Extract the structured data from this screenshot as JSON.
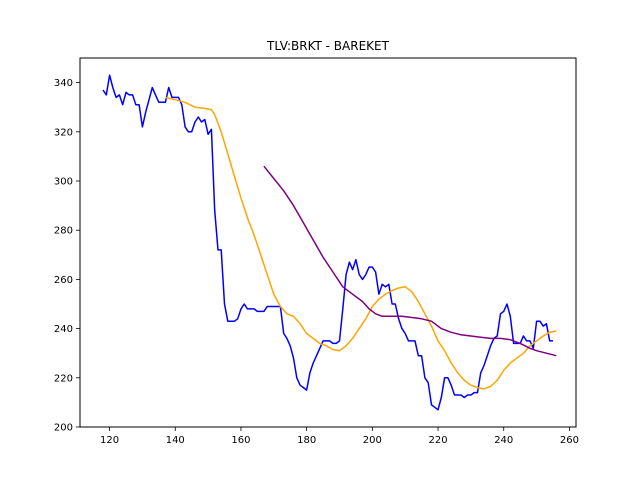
{
  "chart_data": {
    "type": "line",
    "title": "TLV:BRKT - BAREKET",
    "xlabel": "",
    "ylabel": "",
    "xlim": [
      111,
      262
    ],
    "ylim": [
      200,
      350
    ],
    "xticks": [
      120,
      140,
      160,
      180,
      200,
      220,
      240,
      260
    ],
    "yticks": [
      200,
      220,
      240,
      260,
      280,
      300,
      320,
      340
    ],
    "grid": false,
    "legend": "none",
    "series": [
      {
        "color": "#0000ff",
        "points": [
          [
            118,
            337
          ],
          [
            119,
            335
          ],
          [
            120,
            343
          ],
          [
            121,
            338
          ],
          [
            122,
            334
          ],
          [
            123,
            335
          ],
          [
            124,
            331
          ],
          [
            125,
            336
          ],
          [
            126,
            335
          ],
          [
            127,
            335
          ],
          [
            128,
            331
          ],
          [
            129,
            331
          ],
          [
            130,
            322
          ],
          [
            131,
            328
          ],
          [
            132,
            333
          ],
          [
            133,
            338
          ],
          [
            134,
            335
          ],
          [
            135,
            332
          ],
          [
            136,
            332
          ],
          [
            137,
            332
          ],
          [
            138,
            338
          ],
          [
            139,
            334
          ],
          [
            140,
            334
          ],
          [
            141,
            334
          ],
          [
            142,
            331
          ],
          [
            143,
            322
          ],
          [
            144,
            320
          ],
          [
            145,
            320
          ],
          [
            146,
            324
          ],
          [
            147,
            326
          ],
          [
            148,
            324
          ],
          [
            149,
            325
          ],
          [
            150,
            319
          ],
          [
            151,
            321
          ],
          [
            152,
            288
          ],
          [
            153,
            272
          ],
          [
            154,
            272
          ],
          [
            155,
            250
          ],
          [
            156,
            243
          ],
          [
            157,
            243
          ],
          [
            158,
            243
          ],
          [
            159,
            244
          ],
          [
            160,
            248
          ],
          [
            161,
            250
          ],
          [
            162,
            248
          ],
          [
            163,
            248
          ],
          [
            164,
            248
          ],
          [
            165,
            247
          ],
          [
            166,
            247
          ],
          [
            167,
            247
          ],
          [
            168,
            249
          ],
          [
            169,
            249
          ],
          [
            170,
            249
          ],
          [
            171,
            249
          ],
          [
            172,
            249
          ],
          [
            173,
            238
          ],
          [
            174,
            236
          ],
          [
            175,
            233
          ],
          [
            176,
            228
          ],
          [
            177,
            220
          ],
          [
            178,
            217
          ],
          [
            179,
            216
          ],
          [
            180,
            215
          ],
          [
            181,
            222
          ],
          [
            182,
            226
          ],
          [
            183,
            229
          ],
          [
            184,
            232
          ],
          [
            185,
            235
          ],
          [
            186,
            235
          ],
          [
            187,
            235
          ],
          [
            188,
            234
          ],
          [
            189,
            234
          ],
          [
            190,
            235
          ],
          [
            191,
            248
          ],
          [
            192,
            262
          ],
          [
            193,
            267
          ],
          [
            194,
            264
          ],
          [
            195,
            268
          ],
          [
            196,
            262
          ],
          [
            197,
            260
          ],
          [
            198,
            262
          ],
          [
            199,
            265
          ],
          [
            200,
            265
          ],
          [
            201,
            263
          ],
          [
            202,
            254
          ],
          [
            203,
            258
          ],
          [
            204,
            257
          ],
          [
            205,
            258
          ],
          [
            206,
            250
          ],
          [
            207,
            250
          ],
          [
            208,
            244
          ],
          [
            209,
            240
          ],
          [
            210,
            238
          ],
          [
            211,
            235
          ],
          [
            212,
            235
          ],
          [
            213,
            235
          ],
          [
            214,
            229
          ],
          [
            215,
            229
          ],
          [
            216,
            220
          ],
          [
            217,
            218
          ],
          [
            218,
            209
          ],
          [
            219,
            208
          ],
          [
            220,
            207
          ],
          [
            221,
            212
          ],
          [
            222,
            220
          ],
          [
            223,
            220
          ],
          [
            224,
            217
          ],
          [
            225,
            213
          ],
          [
            226,
            213
          ],
          [
            227,
            213
          ],
          [
            228,
            212
          ],
          [
            229,
            213
          ],
          [
            230,
            213
          ],
          [
            231,
            214
          ],
          [
            232,
            214
          ],
          [
            233,
            222
          ],
          [
            234,
            225
          ],
          [
            235,
            229
          ],
          [
            236,
            233
          ],
          [
            237,
            236
          ],
          [
            238,
            237
          ],
          [
            239,
            246
          ],
          [
            240,
            247
          ],
          [
            241,
            250
          ],
          [
            242,
            245
          ],
          [
            243,
            234
          ],
          [
            244,
            234
          ],
          [
            245,
            234
          ],
          [
            246,
            237
          ],
          [
            247,
            235
          ],
          [
            248,
            235
          ],
          [
            249,
            232
          ],
          [
            250,
            243
          ],
          [
            251,
            243
          ],
          [
            252,
            241
          ],
          [
            253,
            242
          ],
          [
            254,
            235
          ],
          [
            255,
            235
          ]
        ]
      },
      {
        "color": "#ffa500",
        "points": [
          [
            137,
            334
          ],
          [
            140,
            333
          ],
          [
            143,
            332
          ],
          [
            146,
            330
          ],
          [
            149,
            329.5
          ],
          [
            151,
            329
          ],
          [
            152,
            327
          ],
          [
            154,
            320
          ],
          [
            156,
            311
          ],
          [
            158,
            302
          ],
          [
            160,
            293
          ],
          [
            162,
            285
          ],
          [
            164,
            278
          ],
          [
            166,
            270
          ],
          [
            168,
            262
          ],
          [
            170,
            254
          ],
          [
            172,
            249
          ],
          [
            174,
            246
          ],
          [
            176,
            245
          ],
          [
            178,
            242
          ],
          [
            180,
            238
          ],
          [
            182,
            236
          ],
          [
            184,
            234
          ],
          [
            186,
            233
          ],
          [
            188,
            231.5
          ],
          [
            190,
            231
          ],
          [
            192,
            233
          ],
          [
            194,
            236
          ],
          [
            196,
            240
          ],
          [
            198,
            244
          ],
          [
            200,
            249
          ],
          [
            202,
            252
          ],
          [
            204,
            254
          ],
          [
            206,
            255.5
          ],
          [
            208,
            256.5
          ],
          [
            210,
            257
          ],
          [
            212,
            255
          ],
          [
            214,
            251
          ],
          [
            216,
            246
          ],
          [
            218,
            241
          ],
          [
            220,
            235
          ],
          [
            222,
            231
          ],
          [
            224,
            226
          ],
          [
            226,
            222
          ],
          [
            228,
            219
          ],
          [
            230,
            217
          ],
          [
            232,
            216
          ],
          [
            234,
            215.5
          ],
          [
            236,
            216.5
          ],
          [
            238,
            219
          ],
          [
            240,
            223
          ],
          [
            242,
            226
          ],
          [
            244,
            228
          ],
          [
            246,
            230
          ],
          [
            248,
            233
          ],
          [
            250,
            235
          ],
          [
            252,
            237
          ],
          [
            254,
            238.5
          ],
          [
            256,
            239
          ]
        ]
      },
      {
        "color": "#800080",
        "points": [
          [
            167,
            306
          ],
          [
            170,
            301
          ],
          [
            173,
            296
          ],
          [
            176,
            290
          ],
          [
            179,
            283
          ],
          [
            182,
            276
          ],
          [
            185,
            269
          ],
          [
            188,
            263
          ],
          [
            191,
            257
          ],
          [
            194,
            254
          ],
          [
            197,
            251
          ],
          [
            199,
            248
          ],
          [
            201,
            246
          ],
          [
            203,
            245
          ],
          [
            206,
            245
          ],
          [
            209,
            245
          ],
          [
            212,
            244.5
          ],
          [
            215,
            244
          ],
          [
            218,
            243
          ],
          [
            221,
            240
          ],
          [
            224,
            238.5
          ],
          [
            227,
            237.5
          ],
          [
            230,
            237
          ],
          [
            233,
            236.5
          ],
          [
            236,
            236
          ],
          [
            239,
            236
          ],
          [
            242,
            235.5
          ],
          [
            245,
            234
          ],
          [
            248,
            232
          ],
          [
            250,
            231
          ],
          [
            253,
            230
          ],
          [
            256,
            229
          ]
        ]
      }
    ]
  }
}
